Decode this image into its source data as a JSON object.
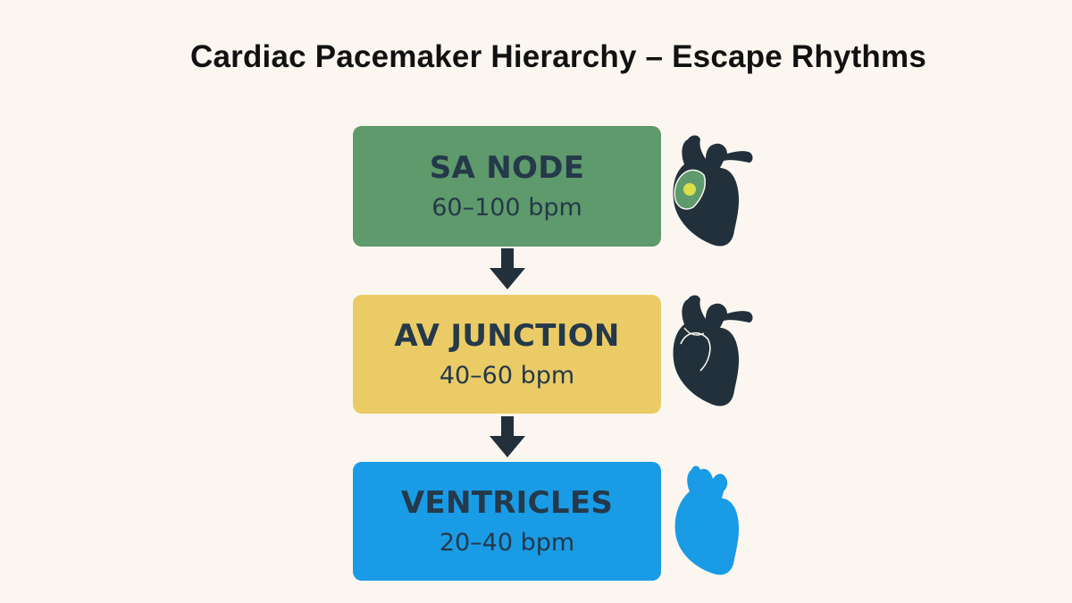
{
  "title": "Cardiac Pacemaker Hierarchy – Escape Rhythms",
  "pacemakers": [
    {
      "name": "SA NODE",
      "rate": "60–100 bpm",
      "color": "#5e9a6b",
      "icon": "heart-sa-node-icon",
      "icon_color": "#22303c"
    },
    {
      "name": "AV JUNCTION",
      "rate": "40–60 bpm",
      "color": "#ebcb66",
      "icon": "heart-av-junction-icon",
      "icon_color": "#22303c"
    },
    {
      "name": "VENTRICLES",
      "rate": "20–40 bpm",
      "color": "#1a9be5",
      "icon": "heart-ventricles-icon",
      "icon_color": "#1a9be5"
    }
  ],
  "arrow_color": "#22303c",
  "sa_marker_color": "#d9e04a"
}
